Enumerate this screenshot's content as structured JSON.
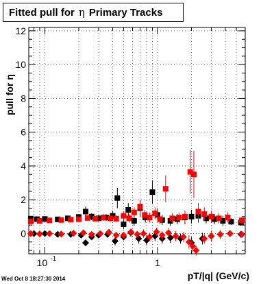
{
  "title": {
    "prefix": "Fitted pull for",
    "symbol": "η",
    "suffix": "Primary Tracks"
  },
  "timestamp": "Wed Oct  8 18:27:30 2014",
  "colors": {
    "black_series": "#000000",
    "red_series": "#ff0000"
  },
  "chart_data": {
    "type": "scatter",
    "title": "Fitted pull for η Primary Tracks",
    "xlabel": "pT/|q| (GeV/c)",
    "ylabel": "pull for η",
    "xscale": "log",
    "xlim": [
      0.072,
      6.0
    ],
    "ylim": [
      -1.2,
      12.2
    ],
    "grid": true,
    "x_tick_labels": [
      {
        "value": 0.1,
        "label": "10",
        "exp": "-1"
      },
      {
        "value": 1,
        "label": "1",
        "exp": ""
      }
    ],
    "y_ticks": [
      0,
      2,
      4,
      6,
      8,
      10,
      12
    ],
    "series": [
      {
        "color": "black",
        "marker": "square",
        "points": [
          [
            0.075,
            0.88,
            0.12
          ],
          [
            0.085,
            0.85,
            0.1
          ],
          [
            0.1,
            0.86,
            0.1
          ],
          [
            0.13,
            0.84,
            0.1
          ],
          [
            0.16,
            0.9,
            0.1
          ],
          [
            0.2,
            0.98,
            0.15
          ],
          [
            0.23,
            1.3,
            0.3
          ],
          [
            0.26,
            1.0,
            0.2
          ],
          [
            0.3,
            0.9,
            0.2
          ],
          [
            0.35,
            0.95,
            0.2
          ],
          [
            0.4,
            1.05,
            0.3
          ],
          [
            0.44,
            2.1,
            0.6
          ],
          [
            0.5,
            0.55,
            0.3
          ],
          [
            0.55,
            1.4,
            0.4
          ],
          [
            0.62,
            0.75,
            0.3
          ],
          [
            0.7,
            1.5,
            0.5
          ],
          [
            0.78,
            0.95,
            0.3
          ],
          [
            0.9,
            2.45,
            0.7
          ],
          [
            1.0,
            1.1,
            0.4
          ],
          [
            1.1,
            0.8,
            0.3
          ],
          [
            1.3,
            0.75,
            0.3
          ],
          [
            1.5,
            0.85,
            0.3
          ],
          [
            1.75,
            0.95,
            0.4
          ],
          [
            2.0,
            1.0,
            0.4
          ],
          [
            2.3,
            1.05,
            0.4
          ],
          [
            2.7,
            0.9,
            0.3
          ],
          [
            3.2,
            0.85,
            0.3
          ],
          [
            3.8,
            0.75,
            0.3
          ],
          [
            4.5,
            0.7,
            0.2
          ],
          [
            5.5,
            0.65,
            0.2
          ]
        ]
      },
      {
        "color": "black",
        "marker": "diamond",
        "points": [
          [
            0.08,
            0.0,
            0.08
          ],
          [
            0.1,
            0.0,
            0.08
          ],
          [
            0.13,
            -0.05,
            0.08
          ],
          [
            0.17,
            -0.05,
            0.08
          ],
          [
            0.21,
            -0.1,
            0.1
          ],
          [
            0.23,
            -0.55,
            0.2
          ],
          [
            0.26,
            -0.2,
            0.15
          ],
          [
            0.3,
            -0.1,
            0.15
          ],
          [
            0.36,
            -0.05,
            0.2
          ],
          [
            0.42,
            -0.45,
            0.25
          ],
          [
            0.5,
            -0.2,
            0.2
          ],
          [
            0.58,
            0.05,
            0.25
          ],
          [
            0.68,
            -0.3,
            0.3
          ],
          [
            0.8,
            -0.4,
            0.3
          ],
          [
            0.95,
            -0.15,
            0.3
          ],
          [
            1.1,
            -0.3,
            0.3
          ],
          [
            1.3,
            -0.25,
            0.3
          ],
          [
            1.6,
            -0.3,
            0.3
          ],
          [
            2.0,
            -0.55,
            0.35
          ],
          [
            2.5,
            -0.3,
            0.35
          ],
          [
            3.0,
            -0.15,
            0.3
          ],
          [
            3.6,
            -0.05,
            0.25
          ],
          [
            4.4,
            0.0,
            0.2
          ],
          [
            5.5,
            -0.05,
            0.2
          ]
        ]
      },
      {
        "color": "red",
        "marker": "square",
        "points": [
          [
            0.075,
            0.72,
            0.1
          ],
          [
            0.09,
            0.75,
            0.1
          ],
          [
            0.11,
            0.78,
            0.1
          ],
          [
            0.14,
            0.8,
            0.1
          ],
          [
            0.17,
            0.82,
            0.1
          ],
          [
            0.2,
            0.85,
            0.1
          ],
          [
            0.24,
            0.92,
            0.15
          ],
          [
            0.28,
            0.88,
            0.15
          ],
          [
            0.33,
            0.95,
            0.2
          ],
          [
            0.38,
            0.9,
            0.2
          ],
          [
            0.43,
            0.88,
            0.2
          ],
          [
            0.5,
            1.05,
            0.25
          ],
          [
            0.56,
            0.9,
            0.25
          ],
          [
            0.62,
            1.25,
            0.3
          ],
          [
            0.7,
            1.6,
            0.4
          ],
          [
            0.77,
            1.1,
            0.3
          ],
          [
            0.85,
            0.95,
            0.3
          ],
          [
            0.95,
            1.2,
            0.35
          ],
          [
            1.05,
            0.85,
            0.3
          ],
          [
            1.18,
            2.65,
            0.8
          ],
          [
            1.35,
            0.9,
            0.3
          ],
          [
            1.55,
            0.95,
            0.3
          ],
          [
            1.75,
            1.0,
            0.35
          ],
          [
            1.95,
            3.65,
            1.3
          ],
          [
            2.1,
            3.5,
            1.4
          ],
          [
            2.3,
            1.3,
            0.5
          ],
          [
            2.6,
            1.15,
            0.4
          ],
          [
            3.0,
            1.0,
            0.35
          ],
          [
            3.5,
            0.9,
            0.3
          ],
          [
            4.2,
            0.95,
            0.3
          ],
          [
            5.6,
            0.78,
            0.2
          ]
        ]
      },
      {
        "color": "red",
        "marker": "diamond",
        "points": [
          [
            0.075,
            0.0,
            0.08
          ],
          [
            0.09,
            -0.02,
            0.08
          ],
          [
            0.11,
            0.0,
            0.08
          ],
          [
            0.14,
            -0.03,
            0.08
          ],
          [
            0.18,
            0.02,
            0.08
          ],
          [
            0.22,
            0.05,
            0.1
          ],
          [
            0.26,
            -0.05,
            0.1
          ],
          [
            0.31,
            0.0,
            0.12
          ],
          [
            0.37,
            0.08,
            0.15
          ],
          [
            0.43,
            -0.1,
            0.15
          ],
          [
            0.5,
            -0.1,
            0.2
          ],
          [
            0.58,
            0.1,
            0.2
          ],
          [
            0.66,
            -0.05,
            0.2
          ],
          [
            0.75,
            0.0,
            0.25
          ],
          [
            0.85,
            -0.2,
            0.25
          ],
          [
            0.98,
            0.1,
            0.25
          ],
          [
            1.1,
            -0.1,
            0.25
          ],
          [
            1.25,
            0.05,
            0.3
          ],
          [
            1.45,
            -0.15,
            0.3
          ],
          [
            1.7,
            -0.2,
            0.3
          ],
          [
            1.9,
            -0.5,
            0.4
          ],
          [
            2.05,
            -0.75,
            0.35
          ],
          [
            2.2,
            -1.0,
            0.3
          ],
          [
            2.6,
            -0.3,
            0.3
          ],
          [
            3.0,
            -0.15,
            0.3
          ],
          [
            3.6,
            -0.05,
            0.25
          ],
          [
            4.4,
            0.0,
            0.2
          ],
          [
            5.6,
            -0.05,
            0.2
          ]
        ]
      }
    ]
  }
}
